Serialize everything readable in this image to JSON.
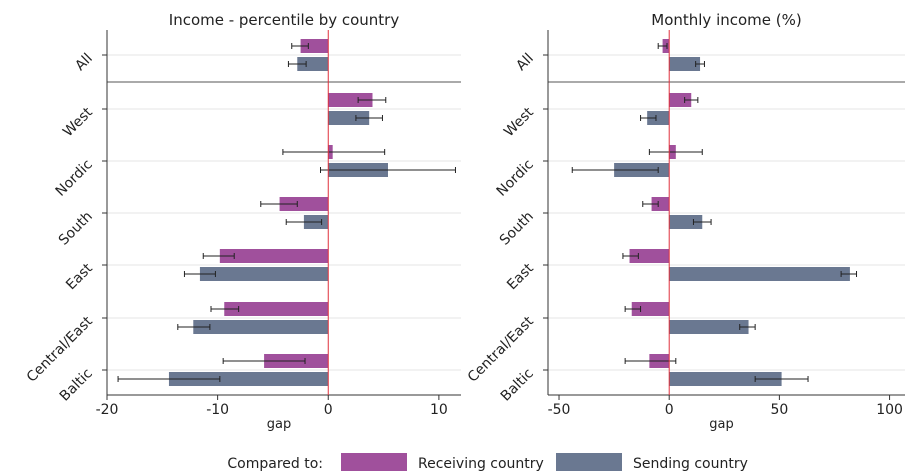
{
  "chart_data": [
    {
      "type": "bar",
      "orientation": "horizontal",
      "title": "Income - percentile by country",
      "xlabel": "gap",
      "xlim": [
        -20,
        12
      ],
      "xticks": [
        -20,
        -10,
        0,
        10
      ],
      "tick_labels": [
        "-20",
        "-10",
        "0",
        "10"
      ],
      "categories": [
        "All",
        "West",
        "Nordic",
        "South",
        "East",
        "Central/East",
        "Baltic"
      ],
      "series": [
        {
          "name": "Receiving country",
          "values": [
            -2.5,
            4.0,
            0.4,
            -4.4,
            -9.8,
            -9.4,
            -5.8
          ],
          "ci_low": [
            -3.3,
            2.7,
            -4.1,
            -6.1,
            -11.3,
            -10.6,
            -9.5
          ],
          "ci_high": [
            -1.8,
            5.2,
            5.1,
            -2.8,
            -8.5,
            -8.1,
            -2.1
          ]
        },
        {
          "name": "Sending country",
          "values": [
            -2.8,
            3.7,
            5.4,
            -2.2,
            -11.6,
            -12.2,
            -14.4
          ],
          "ci_low": [
            -3.6,
            2.5,
            -0.7,
            -3.8,
            -13.0,
            -13.6,
            -19.0
          ],
          "ci_high": [
            -2.0,
            4.9,
            11.5,
            -0.6,
            -10.2,
            -10.7,
            -9.8
          ]
        }
      ],
      "grid": true
    },
    {
      "type": "bar",
      "orientation": "horizontal",
      "title": "Monthly income (%)",
      "xlabel": "gap",
      "xlim": [
        -55,
        107
      ],
      "xticks": [
        -50,
        0,
        50,
        100
      ],
      "tick_labels": [
        "-50",
        "0",
        "50",
        "100"
      ],
      "categories": [
        "All",
        "West",
        "Nordic",
        "South",
        "East",
        "Central/East",
        "Baltic"
      ],
      "series": [
        {
          "name": "Receiving country",
          "values": [
            -3.0,
            10.0,
            3.0,
            -8.0,
            -18.0,
            -17.0,
            -9.0
          ],
          "ci_low": [
            -5.0,
            7.0,
            -9.0,
            -12.0,
            -21.0,
            -20.0,
            -20.0
          ],
          "ci_high": [
            -1.0,
            13.0,
            15.0,
            -5.0,
            -14.0,
            -13.0,
            3.0
          ]
        },
        {
          "name": "Sending country",
          "values": [
            14.0,
            -10.0,
            -25.0,
            15.0,
            82.0,
            36.0,
            51.0
          ],
          "ci_low": [
            12.0,
            -13.0,
            -44.0,
            11.0,
            78.0,
            32.0,
            39.0
          ],
          "ci_high": [
            16.0,
            -6.0,
            -5.0,
            19.0,
            85.0,
            39.0,
            63.0
          ]
        }
      ],
      "grid": true
    }
  ],
  "legend": {
    "title": "Compared to:",
    "items": [
      {
        "label": "Receiving country",
        "color": "#a0509c"
      },
      {
        "label": "Sending country",
        "color": "#6a7891"
      }
    ],
    "placement": "bottom"
  },
  "colors": {
    "receiving": "#a0509c",
    "sending": "#6a7891",
    "zero_line": "#e0303c"
  }
}
